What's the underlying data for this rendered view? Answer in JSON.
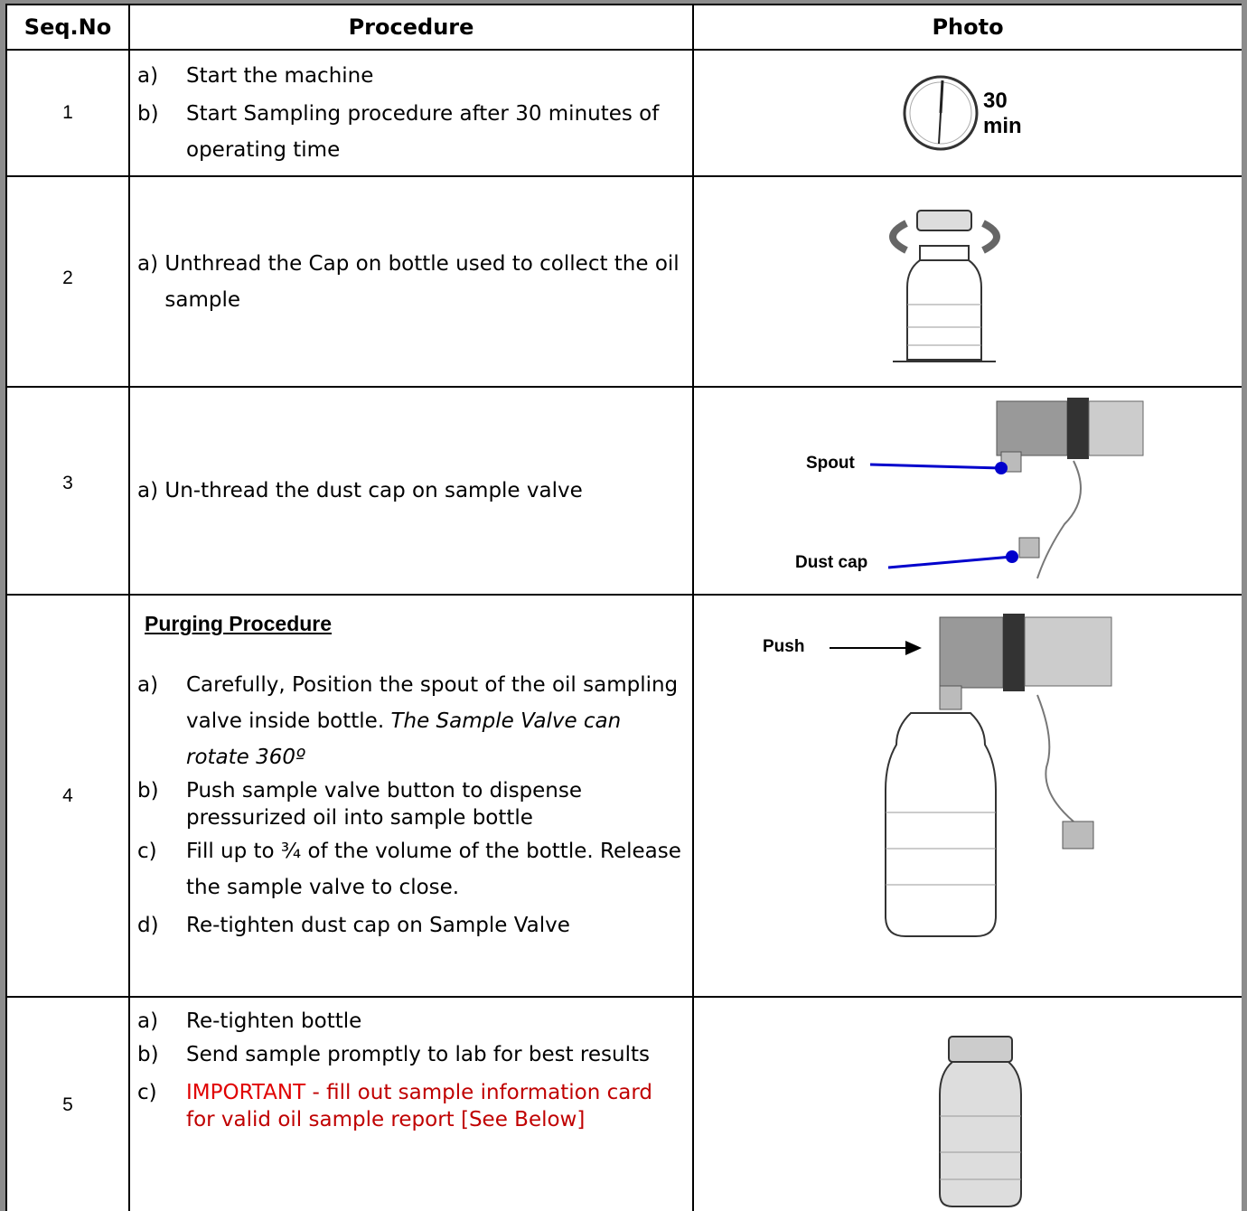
{
  "table": {
    "headers": [
      "Seq.No",
      "Procedure",
      "Photo"
    ],
    "rows": [
      {
        "seq": "1",
        "items": [
          {
            "marker": "a)",
            "text": "Start the machine"
          },
          {
            "marker": "b)",
            "text": "Start Sampling procedure after 30 minutes of operating time"
          }
        ],
        "photo": {
          "labels": [
            "30",
            "min"
          ]
        }
      },
      {
        "seq": "2",
        "items": [
          {
            "marker": "a)",
            "text": "Unthread the Cap on bottle used to collect the oil sample"
          }
        ],
        "photo": {
          "labels": []
        }
      },
      {
        "seq": "3",
        "items": [
          {
            "marker": "a)",
            "text": "Un-thread the dust cap on sample valve"
          }
        ],
        "photo": {
          "labels": [
            "Spout",
            "Dust cap"
          ]
        }
      },
      {
        "seq": "4",
        "heading": "Purging Procedure",
        "items": [
          {
            "marker": "a)",
            "text": "Carefully, Position the spout of the oil sampling valve inside bottle.",
            "note": "The Sample Valve can rotate 360º"
          },
          {
            "marker": "b)",
            "text": "Push sample valve button to dispense pressurized oil into sample bottle"
          },
          {
            "marker": "c)",
            "text": "Fill up to ¾ of the volume of the bottle. Release the sample valve to close."
          },
          {
            "marker": "d)",
            "text": "Re-tighten dust cap on Sample Valve"
          }
        ],
        "photo": {
          "labels": [
            "Push"
          ]
        }
      },
      {
        "seq": "5",
        "items": [
          {
            "marker": "a)",
            "text": "Re-tighten bottle"
          },
          {
            "marker": "b)",
            "text": "Send sample promptly to lab for best results"
          },
          {
            "marker": "c)",
            "alert": "IMPORTANT",
            "text": "- fill out sample information card for valid oil sample report [See Below]"
          }
        ],
        "photo": {
          "labels": []
        }
      }
    ]
  }
}
